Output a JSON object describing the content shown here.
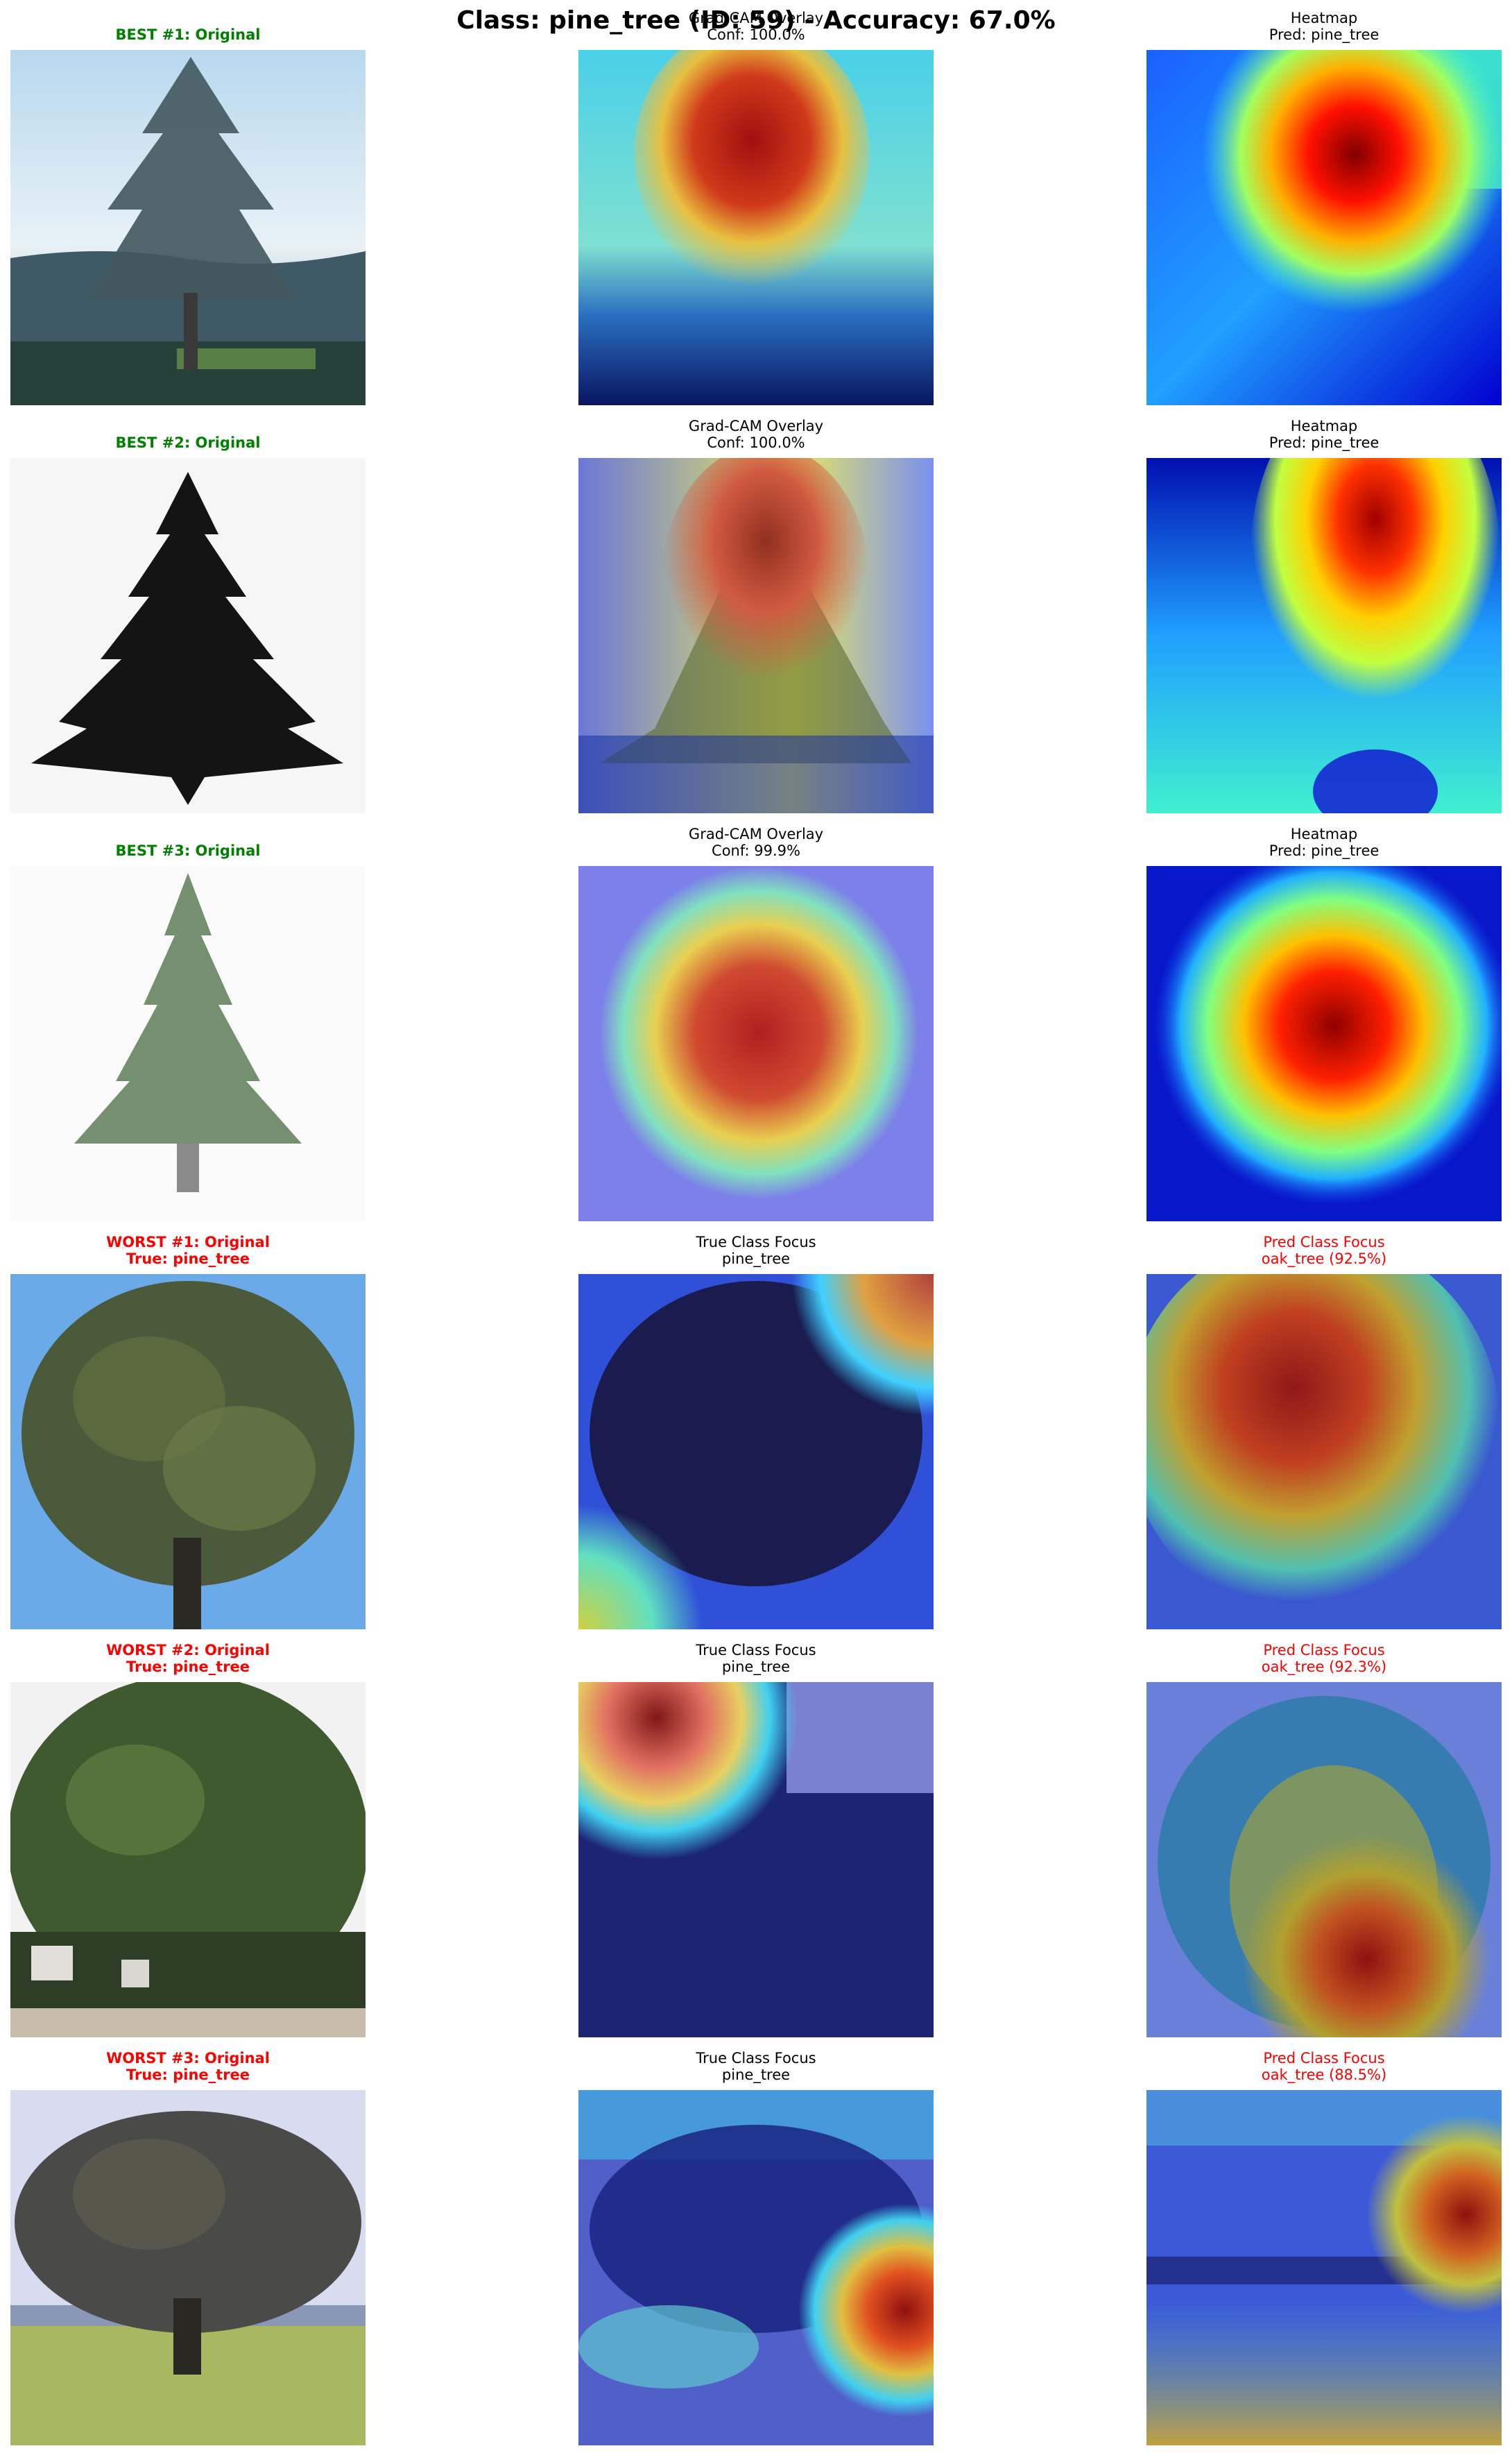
{
  "suptitle": "Class: pine_tree (ID: 59) - Accuracy: 67.0%",
  "colors": {
    "best": "#008000",
    "worst": "#ff0000"
  },
  "rows": [
    {
      "kind": "best",
      "original": {
        "line1": "BEST #1: Original",
        "line2": "",
        "scene": "pine-tree-mountain-photo"
      },
      "middle": {
        "line1": "Grad-CAM Overlay",
        "line2": "Conf: 100.0%",
        "scene": "gradcam-overlay"
      },
      "right": {
        "line1": "Heatmap",
        "line2": "Pred: pine_tree",
        "scene": "gradcam-heatmap"
      }
    },
    {
      "kind": "best",
      "original": {
        "line1": "BEST #2: Original",
        "line2": "",
        "scene": "dark-pine-silhouette"
      },
      "middle": {
        "line1": "Grad-CAM Overlay",
        "line2": "Conf: 100.0%",
        "scene": "gradcam-overlay"
      },
      "right": {
        "line1": "Heatmap",
        "line2": "Pred: pine_tree",
        "scene": "gradcam-heatmap"
      }
    },
    {
      "kind": "best",
      "original": {
        "line1": "BEST #3: Original",
        "line2": "",
        "scene": "pine-tree-white-background"
      },
      "middle": {
        "line1": "Grad-CAM Overlay",
        "line2": "Conf: 99.9%",
        "scene": "gradcam-overlay"
      },
      "right": {
        "line1": "Heatmap",
        "line2": "Pred: pine_tree",
        "scene": "gradcam-heatmap"
      }
    },
    {
      "kind": "worst",
      "original": {
        "line1": "WORST #1: Original",
        "line2": "True: pine_tree",
        "scene": "broadleaf-tree-blue-sky"
      },
      "middle": {
        "line1": "True Class Focus",
        "line2": "pine_tree",
        "scene": "gradcam-overlay"
      },
      "right": {
        "line1": "Pred Class Focus",
        "line2": "oak_tree (92.5%)",
        "scene": "gradcam-overlay"
      }
    },
    {
      "kind": "worst",
      "original": {
        "line1": "WORST #2: Original",
        "line2": "True: pine_tree",
        "scene": "broadleaf-tree-houses"
      },
      "middle": {
        "line1": "True Class Focus",
        "line2": "pine_tree",
        "scene": "gradcam-overlay"
      },
      "right": {
        "line1": "Pred Class Focus",
        "line2": "oak_tree (92.3%)",
        "scene": "gradcam-overlay"
      }
    },
    {
      "kind": "worst",
      "original": {
        "line1": "WORST #3: Original",
        "line2": "True: pine_tree",
        "scene": "broadleaf-tree-field"
      },
      "middle": {
        "line1": "True Class Focus",
        "line2": "pine_tree",
        "scene": "gradcam-overlay"
      },
      "right": {
        "line1": "Pred Class Focus",
        "line2": "oak_tree (88.5%)",
        "scene": "gradcam-overlay"
      }
    }
  ]
}
